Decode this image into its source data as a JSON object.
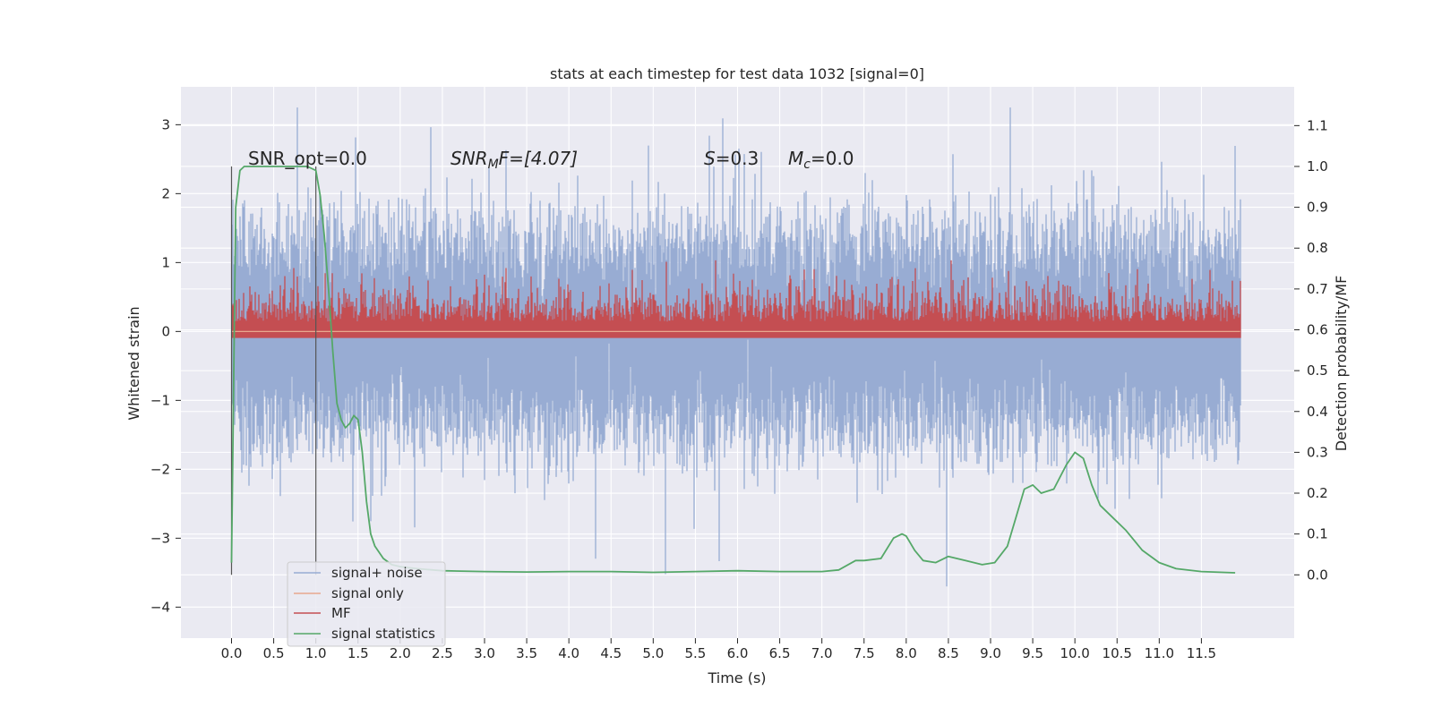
{
  "chart_data": {
    "type": "line",
    "title": "stats at each timestep for test data 1032 [signal=0]",
    "xlabel": "Time (s)",
    "ylabel": "Whitened strain",
    "y2label": "Detection probability/MF",
    "xlim": [
      -0.6,
      12.6
    ],
    "ylim": [
      -4.45,
      3.55
    ],
    "y2lim": [
      -0.155,
      1.195
    ],
    "x_ticks": [
      "0.0",
      "0.5",
      "1.0",
      "1.5",
      "2.0",
      "2.5",
      "3.0",
      "3.5",
      "4.0",
      "4.5",
      "5.0",
      "5.5",
      "6.0",
      "6.5",
      "7.0",
      "7.5",
      "8.0",
      "8.5",
      "9.0",
      "9.5",
      "10.0",
      "10.5",
      "11.0",
      "11.5"
    ],
    "y_ticks": [
      3,
      2,
      1,
      0,
      -1,
      -2,
      -3,
      -4
    ],
    "y_tick_labels": [
      "3",
      "2",
      "1",
      "0",
      "−1",
      "−2",
      "−3",
      "−4"
    ],
    "y2_ticks": [
      "1.1",
      "1.0",
      "0.9",
      "0.8",
      "0.7",
      "0.6",
      "0.5",
      "0.4",
      "0.3",
      "0.2",
      "0.1",
      "0.0"
    ],
    "grid": true,
    "legend_position": "lower-left",
    "annotations": {
      "snr_opt": "SNR_opt=0.0",
      "snr_mf_base": "SNR",
      "snr_mf_sub": "M",
      "snr_mf_rest": "F=[4.07]",
      "s_sym": "S",
      "s_val": "=0.3",
      "mc_sym": "M",
      "mc_sub": "c",
      "mc_val": "=0.0"
    },
    "vertical_lines_x": [
      0.0,
      1.0
    ],
    "series": [
      {
        "name": "signal+ noise",
        "color": "#98acd3",
        "axis": "left",
        "x_range": [
          0.0,
          11.96
        ],
        "samples": 4096,
        "typical_range": [
          -1.35,
          1.3
        ],
        "extremes": [
          -3.7,
          3.25
        ]
      },
      {
        "name": "signal only",
        "color": "#e8a88e",
        "axis": "left",
        "values_flat": 0.0
      },
      {
        "name": "MF",
        "color": "#c44e52",
        "axis": "right",
        "x_range": [
          0.0,
          11.96
        ],
        "samples": 4096,
        "baseline": 0.58,
        "typical_range": [
          0.58,
          0.7
        ],
        "extremes": [
          0.58,
          0.77
        ]
      },
      {
        "name": "signal statistics",
        "color": "#55a868",
        "axis": "right",
        "x": [
          0.0,
          0.05,
          0.1,
          0.15,
          0.2,
          0.3,
          0.5,
          0.8,
          0.9,
          1.0,
          1.05,
          1.1,
          1.15,
          1.2,
          1.25,
          1.3,
          1.35,
          1.4,
          1.45,
          1.5,
          1.55,
          1.6,
          1.65,
          1.7,
          1.8,
          1.9,
          2.0,
          2.2,
          2.5,
          3.0,
          3.5,
          4.0,
          4.5,
          5.0,
          5.5,
          6.0,
          6.5,
          7.0,
          7.2,
          7.4,
          7.5,
          7.7,
          7.85,
          7.95,
          8.0,
          8.1,
          8.2,
          8.35,
          8.5,
          8.7,
          8.9,
          9.05,
          9.2,
          9.3,
          9.4,
          9.5,
          9.6,
          9.75,
          9.9,
          10.0,
          10.1,
          10.2,
          10.3,
          10.4,
          10.6,
          10.8,
          11.0,
          11.2,
          11.5,
          11.9
        ],
        "values": [
          0.03,
          0.9,
          0.99,
          1.0,
          1.0,
          1.0,
          1.0,
          1.0,
          1.0,
          0.99,
          0.93,
          0.83,
          0.7,
          0.55,
          0.42,
          0.38,
          0.36,
          0.37,
          0.39,
          0.38,
          0.3,
          0.18,
          0.1,
          0.07,
          0.04,
          0.025,
          0.02,
          0.015,
          0.01,
          0.008,
          0.007,
          0.008,
          0.008,
          0.006,
          0.008,
          0.01,
          0.008,
          0.008,
          0.012,
          0.035,
          0.035,
          0.04,
          0.09,
          0.1,
          0.095,
          0.06,
          0.035,
          0.03,
          0.045,
          0.035,
          0.025,
          0.03,
          0.07,
          0.14,
          0.21,
          0.22,
          0.2,
          0.21,
          0.27,
          0.3,
          0.285,
          0.22,
          0.17,
          0.15,
          0.11,
          0.06,
          0.03,
          0.015,
          0.008,
          0.005
        ]
      }
    ]
  }
}
